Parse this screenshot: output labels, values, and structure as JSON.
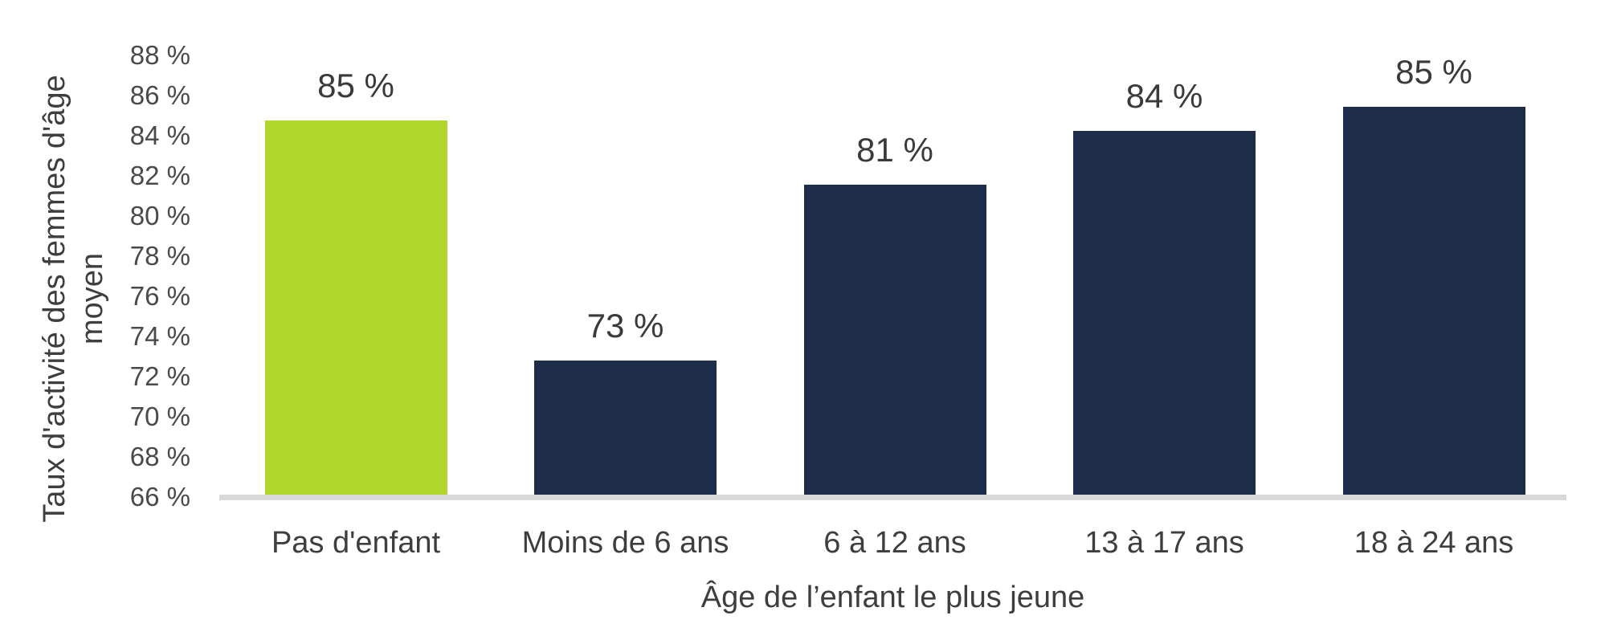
{
  "chart_data": {
    "type": "bar",
    "title": "",
    "categories": [
      "Pas d'enfant",
      "Moins de 6 ans",
      "6 à 12 ans",
      "13 à 17 ans",
      "18 à 24 ans"
    ],
    "values": [
      85,
      73,
      81,
      84,
      85
    ],
    "bar_labels": [
      "85 %",
      "73 %",
      "81 %",
      "84 %",
      "85 %"
    ],
    "plotted_values": [
      84.62,
      72.66,
      81.42,
      84.12,
      85.32
    ],
    "xlabel": "Âge de l’enfant le plus jeune",
    "ylabel": "Taux d'activité des femmes d'âge moyen",
    "ylabel_lines": [
      "Taux d'activité des femmes d'âge",
      "moyen"
    ],
    "y_ticks": [
      "88 %",
      "86 %",
      "84 %",
      "82 %",
      "80 %",
      "78 %",
      "76 %",
      "74 %",
      "72 %",
      "70 %",
      "68 %",
      "66 %"
    ],
    "ylim": [
      66,
      88
    ],
    "grid": false,
    "legend": "none",
    "highlight_index": 0,
    "colors": {
      "highlight_bar": "#B1D62E",
      "default_bar": "#1E2D4A",
      "axis_line": "#D9D9D9",
      "text": "#3E3E3E"
    }
  }
}
